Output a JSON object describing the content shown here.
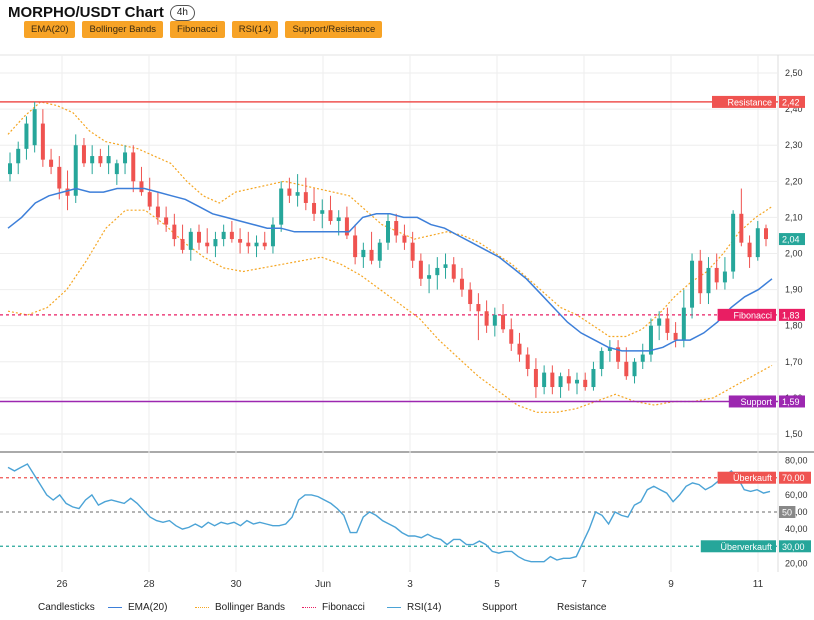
{
  "title": "MORPHO/USDT Chart",
  "timeframe": "4h",
  "indicators": [
    "EMA(20)",
    "Bollinger Bands",
    "Fibonacci",
    "RSI(14)",
    "Support/Resistance"
  ],
  "colors": {
    "up": "#26a69a",
    "down": "#ef5350",
    "ema": "#3d7fd9",
    "bollinger": "#f5a623",
    "resistance": "#ef5350",
    "support": "#9c27b0",
    "fibonacci": "#e91e63",
    "rsi": "#4ba3d6",
    "overbought": "#ef5350",
    "oversold": "#26a69a",
    "rsi_mid": "#888888"
  },
  "chart_data": {
    "type": "candlestick",
    "price_axis": {
      "ticks": [
        "2,50",
        "2,40",
        "2,30",
        "2,20",
        "2,10",
        "2,00",
        "1,90",
        "1,80",
        "1,70",
        "1,60",
        "1,50"
      ],
      "ylim": [
        1.45,
        2.55
      ]
    },
    "x_axis": {
      "ticks": [
        "26",
        "28",
        "30",
        "Jun",
        "3",
        "5",
        "7",
        "9",
        "11"
      ]
    },
    "levels": {
      "resistance": {
        "label": "Resistance",
        "value": 2.42,
        "text": "2,42"
      },
      "fibonacci": {
        "label": "Fibonacci",
        "value": 1.83,
        "text": "1,83"
      },
      "support": {
        "label": "Support",
        "value": 1.59,
        "text": "1,59"
      },
      "last_price": {
        "value": 2.04,
        "text": "2,04"
      }
    },
    "candles": [
      [
        2.22,
        2.28,
        2.2,
        2.25
      ],
      [
        2.25,
        2.31,
        2.22,
        2.29
      ],
      [
        2.29,
        2.38,
        2.26,
        2.36
      ],
      [
        2.3,
        2.42,
        2.28,
        2.4
      ],
      [
        2.36,
        2.4,
        2.24,
        2.26
      ],
      [
        2.26,
        2.29,
        2.22,
        2.24
      ],
      [
        2.24,
        2.27,
        2.15,
        2.18
      ],
      [
        2.18,
        2.23,
        2.12,
        2.16
      ],
      [
        2.16,
        2.33,
        2.14,
        2.3
      ],
      [
        2.3,
        2.32,
        2.24,
        2.25
      ],
      [
        2.25,
        2.3,
        2.22,
        2.27
      ],
      [
        2.27,
        2.29,
        2.24,
        2.25
      ],
      [
        2.25,
        2.3,
        2.22,
        2.27
      ],
      [
        2.22,
        2.26,
        2.19,
        2.25
      ],
      [
        2.25,
        2.3,
        2.22,
        2.28
      ],
      [
        2.28,
        2.3,
        2.17,
        2.2
      ],
      [
        2.2,
        2.24,
        2.16,
        2.17
      ],
      [
        2.17,
        2.21,
        2.12,
        2.13
      ],
      [
        2.13,
        2.17,
        2.08,
        2.1
      ],
      [
        2.1,
        2.13,
        2.06,
        2.08
      ],
      [
        2.08,
        2.11,
        2.02,
        2.04
      ],
      [
        2.04,
        2.08,
        2.0,
        2.01
      ],
      [
        2.01,
        2.07,
        1.98,
        2.06
      ],
      [
        2.06,
        2.08,
        2.01,
        2.03
      ],
      [
        2.03,
        2.07,
        2.0,
        2.02
      ],
      [
        2.02,
        2.06,
        1.99,
        2.04
      ],
      [
        2.04,
        2.08,
        2.02,
        2.06
      ],
      [
        2.06,
        2.09,
        2.03,
        2.04
      ],
      [
        2.04,
        2.07,
        2.0,
        2.03
      ],
      [
        2.03,
        2.06,
        2.0,
        2.02
      ],
      [
        2.02,
        2.05,
        1.99,
        2.03
      ],
      [
        2.03,
        2.06,
        2.01,
        2.02
      ],
      [
        2.02,
        2.1,
        2.0,
        2.08
      ],
      [
        2.08,
        2.2,
        2.06,
        2.18
      ],
      [
        2.18,
        2.21,
        2.14,
        2.16
      ],
      [
        2.16,
        2.22,
        2.13,
        2.17
      ],
      [
        2.17,
        2.21,
        2.12,
        2.14
      ],
      [
        2.14,
        2.18,
        2.09,
        2.11
      ],
      [
        2.11,
        2.15,
        2.07,
        2.12
      ],
      [
        2.12,
        2.16,
        2.08,
        2.09
      ],
      [
        2.09,
        2.12,
        2.05,
        2.1
      ],
      [
        2.1,
        2.13,
        2.04,
        2.05
      ],
      [
        2.05,
        2.08,
        1.97,
        1.99
      ],
      [
        1.99,
        2.03,
        1.96,
        2.01
      ],
      [
        2.01,
        2.06,
        1.97,
        1.98
      ],
      [
        1.98,
        2.04,
        1.96,
        2.03
      ],
      [
        2.03,
        2.11,
        2.01,
        2.09
      ],
      [
        2.09,
        2.11,
        2.03,
        2.05
      ],
      [
        2.05,
        2.08,
        2.01,
        2.03
      ],
      [
        2.03,
        2.06,
        1.96,
        1.98
      ],
      [
        1.98,
        2.0,
        1.91,
        1.93
      ],
      [
        1.93,
        1.97,
        1.89,
        1.94
      ],
      [
        1.94,
        1.99,
        1.9,
        1.96
      ],
      [
        1.96,
        2.0,
        1.93,
        1.97
      ],
      [
        1.97,
        1.99,
        1.92,
        1.93
      ],
      [
        1.93,
        1.96,
        1.88,
        1.9
      ],
      [
        1.9,
        1.92,
        1.84,
        1.86
      ],
      [
        1.86,
        1.89,
        1.76,
        1.84
      ],
      [
        1.84,
        1.87,
        1.78,
        1.8
      ],
      [
        1.8,
        1.85,
        1.77,
        1.83
      ],
      [
        1.83,
        1.86,
        1.78,
        1.79
      ],
      [
        1.79,
        1.82,
        1.73,
        1.75
      ],
      [
        1.75,
        1.78,
        1.7,
        1.72
      ],
      [
        1.72,
        1.74,
        1.66,
        1.68
      ],
      [
        1.68,
        1.71,
        1.6,
        1.63
      ],
      [
        1.63,
        1.69,
        1.61,
        1.67
      ],
      [
        1.67,
        1.69,
        1.61,
        1.63
      ],
      [
        1.63,
        1.67,
        1.6,
        1.66
      ],
      [
        1.66,
        1.68,
        1.62,
        1.64
      ],
      [
        1.64,
        1.67,
        1.61,
        1.65
      ],
      [
        1.65,
        1.67,
        1.62,
        1.63
      ],
      [
        1.63,
        1.7,
        1.62,
        1.68
      ],
      [
        1.68,
        1.74,
        1.66,
        1.73
      ],
      [
        1.73,
        1.76,
        1.7,
        1.74
      ],
      [
        1.74,
        1.76,
        1.68,
        1.7
      ],
      [
        1.7,
        1.74,
        1.65,
        1.66
      ],
      [
        1.66,
        1.71,
        1.64,
        1.7
      ],
      [
        1.7,
        1.75,
        1.68,
        1.72
      ],
      [
        1.72,
        1.82,
        1.7,
        1.8
      ],
      [
        1.8,
        1.84,
        1.76,
        1.82
      ],
      [
        1.82,
        1.85,
        1.76,
        1.78
      ],
      [
        1.78,
        1.81,
        1.74,
        1.76
      ],
      [
        1.76,
        1.9,
        1.74,
        1.85
      ],
      [
        1.85,
        2.0,
        1.82,
        1.98
      ],
      [
        1.98,
        2.01,
        1.86,
        1.89
      ],
      [
        1.89,
        1.99,
        1.86,
        1.96
      ],
      [
        1.96,
        2.0,
        1.9,
        1.92
      ],
      [
        1.92,
        1.99,
        1.9,
        1.95
      ],
      [
        1.95,
        2.12,
        1.93,
        2.11
      ],
      [
        2.11,
        2.18,
        2.02,
        2.03
      ],
      [
        2.03,
        2.05,
        1.96,
        1.99
      ],
      [
        1.99,
        2.09,
        1.98,
        2.07
      ],
      [
        2.07,
        2.08,
        2.02,
        2.04
      ]
    ],
    "ema20": [
      2.07,
      2.1,
      2.14,
      2.16,
      2.17,
      2.18,
      2.17,
      2.17,
      2.18,
      2.18,
      2.18,
      2.17,
      2.16,
      2.15,
      2.13,
      2.11,
      2.1,
      2.09,
      2.08,
      2.07,
      2.07,
      2.06,
      2.06,
      2.06,
      2.06,
      2.06,
      2.1,
      2.11,
      2.11,
      2.1,
      2.1,
      2.08,
      2.07,
      2.05,
      2.03,
      2.01,
      1.99,
      1.96,
      1.93,
      1.89,
      1.85,
      1.81,
      1.78,
      1.76,
      1.74,
      1.73,
      1.73,
      1.73,
      1.74,
      1.76,
      1.76,
      1.78,
      1.81,
      1.85,
      1.88,
      1.9,
      1.93
    ],
    "bb_upper": [
      2.33,
      2.38,
      2.42,
      2.41,
      2.39,
      2.34,
      2.31,
      2.3,
      2.29,
      2.27,
      2.25,
      2.2,
      2.16,
      2.14,
      2.17,
      2.18,
      2.19,
      2.2,
      2.19,
      2.18,
      2.17,
      2.16,
      2.12,
      2.08,
      2.06,
      2.04,
      2.05,
      2.06,
      2.05,
      2.03,
      2.0,
      1.97,
      1.93,
      1.89,
      1.85,
      1.83,
      1.8,
      1.77,
      1.77,
      1.79,
      1.83,
      1.88,
      1.92,
      1.95,
      2.0,
      2.06,
      2.1,
      2.13
    ],
    "bb_lower": [
      1.84,
      1.83,
      1.85,
      1.9,
      1.98,
      2.07,
      2.12,
      2.12,
      2.08,
      2.03,
      1.99,
      1.96,
      1.95,
      1.96,
      1.97,
      1.98,
      1.99,
      1.97,
      1.94,
      1.9,
      1.86,
      1.82,
      1.76,
      1.71,
      1.66,
      1.62,
      1.58,
      1.56,
      1.56,
      1.57,
      1.59,
      1.61,
      1.59,
      1.58,
      1.59,
      1.59,
      1.6,
      1.63,
      1.66,
      1.69
    ],
    "rsi": {
      "axis_ticks": [
        "80,00",
        "70,00",
        "60,00",
        "50,00",
        "40,00",
        "30,00",
        "20,00"
      ],
      "ylim": [
        15,
        85
      ],
      "overbought": {
        "label": "Überkauft",
        "value": 70,
        "text": "70,00"
      },
      "midline": {
        "value": 50,
        "text": "50"
      },
      "oversold": {
        "label": "Überverkauft",
        "value": 30,
        "text": "30,00"
      },
      "values": [
        76,
        74,
        76,
        78,
        72,
        66,
        60,
        57,
        60,
        55,
        53,
        52,
        57,
        60,
        54,
        56,
        57,
        56,
        55,
        58,
        55,
        51,
        47,
        45,
        44,
        45,
        42,
        40,
        41,
        43,
        41,
        44,
        42,
        44,
        43,
        44,
        42,
        45,
        43,
        44,
        43,
        42,
        42,
        43,
        47,
        57,
        60,
        60,
        59,
        57,
        55,
        52,
        48,
        38,
        38,
        47,
        50,
        48,
        45,
        43,
        41,
        38,
        36,
        36,
        35,
        37,
        35,
        34,
        31,
        34,
        34,
        31,
        31,
        33,
        31,
        27,
        26,
        27,
        27,
        24,
        22,
        21,
        21,
        21,
        24,
        22,
        23,
        23,
        24,
        32,
        40,
        50,
        48,
        43,
        50,
        48,
        47,
        54,
        56,
        63,
        65,
        63,
        61,
        56,
        60,
        65,
        67,
        66,
        63,
        65,
        68,
        71,
        74,
        70,
        63,
        62,
        63,
        61,
        62
      ]
    }
  },
  "legend": [
    {
      "label": "Candlesticks",
      "style": "none"
    },
    {
      "label": "EMA(20)",
      "style": "ema"
    },
    {
      "label": "Bollinger Bands",
      "style": "bollinger"
    },
    {
      "label": "Fibonacci",
      "style": "fibonacci"
    },
    {
      "label": "RSI(14)",
      "style": "rsi"
    },
    {
      "label": "Support",
      "style": "none"
    },
    {
      "label": "Resistance",
      "style": "none"
    }
  ]
}
